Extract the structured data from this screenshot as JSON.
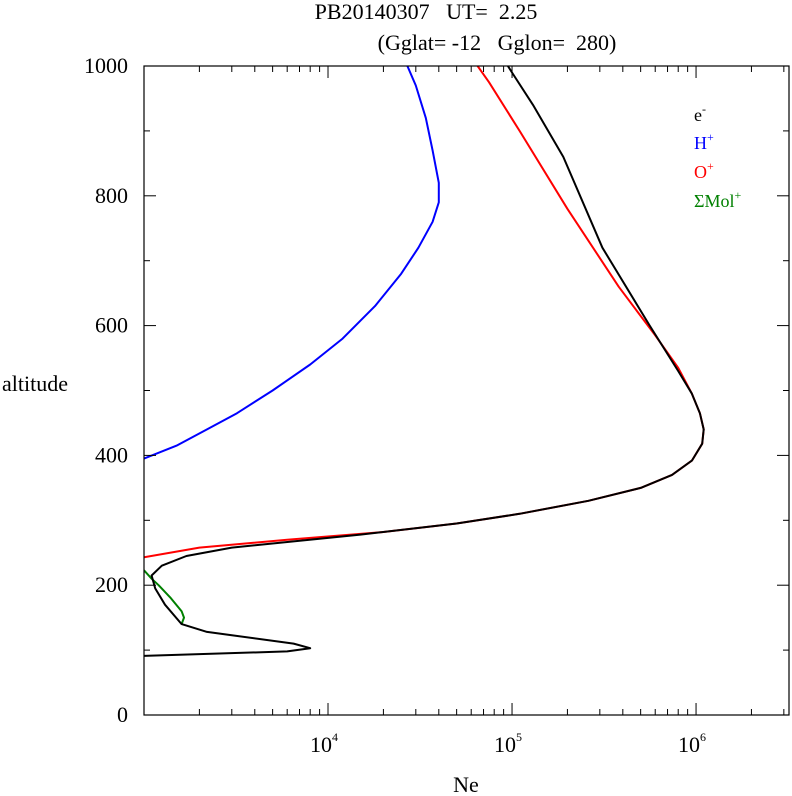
{
  "chart_data": {
    "type": "line",
    "title_line1": "PB20140307   UT=  2.25",
    "title_line2": "(Gglat= -12   Gglon=  280)",
    "xlabel": "Ne",
    "ylabel": "altitude",
    "xscale": "log",
    "xlim": [
      1000,
      3200000
    ],
    "ylim": [
      0,
      1000
    ],
    "x_ticks": [
      {
        "base": "10",
        "exp": "4",
        "value": 10000
      },
      {
        "base": "10",
        "exp": "5",
        "value": 100000
      },
      {
        "base": "10",
        "exp": "6",
        "value": 1000000
      }
    ],
    "y_ticks": [
      "0",
      "200",
      "400",
      "600",
      "800",
      "1000"
    ],
    "legend_position": "top-right",
    "series": [
      {
        "name": "e",
        "name_sup": "-",
        "color": "#000000",
        "points": [
          [
            1000,
            91
          ],
          [
            6000,
            98
          ],
          [
            8000,
            103
          ],
          [
            6500,
            110
          ],
          [
            2200,
            128
          ],
          [
            1600,
            140
          ],
          [
            1300,
            170
          ],
          [
            1150,
            195
          ],
          [
            1100,
            215
          ],
          [
            1250,
            230
          ],
          [
            1700,
            245
          ],
          [
            3000,
            258
          ],
          [
            15000,
            278
          ],
          [
            50000,
            295
          ],
          [
            110000,
            310
          ],
          [
            260000,
            330
          ],
          [
            500000,
            350
          ],
          [
            740000,
            370
          ],
          [
            950000,
            392
          ],
          [
            1080000,
            418
          ],
          [
            1100000,
            440
          ],
          [
            1050000,
            465
          ],
          [
            950000,
            495
          ],
          [
            800000,
            530
          ],
          [
            560000,
            600
          ],
          [
            310000,
            720
          ],
          [
            190000,
            860
          ],
          [
            130000,
            940
          ],
          [
            100000,
            990
          ],
          [
            95000,
            1000
          ]
        ]
      },
      {
        "name": "H",
        "name_sup": "+",
        "color": "#0000ff",
        "points": [
          [
            1000,
            395
          ],
          [
            1500,
            415
          ],
          [
            2200,
            440
          ],
          [
            3200,
            465
          ],
          [
            5000,
            500
          ],
          [
            8000,
            540
          ],
          [
            12000,
            580
          ],
          [
            18000,
            630
          ],
          [
            25000,
            680
          ],
          [
            31000,
            720
          ],
          [
            37000,
            760
          ],
          [
            40000,
            790
          ],
          [
            40000,
            820
          ],
          [
            37000,
            870
          ],
          [
            34000,
            920
          ],
          [
            30000,
            970
          ],
          [
            27000,
            1000
          ]
        ]
      },
      {
        "name": "O",
        "name_sup": "+",
        "color": "#ff0000",
        "points": [
          [
            1000,
            243
          ],
          [
            2000,
            258
          ],
          [
            6000,
            270
          ],
          [
            20000,
            282
          ],
          [
            50000,
            295
          ],
          [
            110000,
            310
          ],
          [
            260000,
            330
          ],
          [
            500000,
            350
          ],
          [
            740000,
            370
          ],
          [
            950000,
            392
          ],
          [
            1080000,
            418
          ],
          [
            1100000,
            440
          ],
          [
            1050000,
            465
          ],
          [
            950000,
            495
          ],
          [
            800000,
            535
          ],
          [
            600000,
            585
          ],
          [
            380000,
            660
          ],
          [
            200000,
            780
          ],
          [
            110000,
            900
          ],
          [
            75000,
            975
          ],
          [
            65000,
            1000
          ]
        ]
      },
      {
        "name": "ΣMol",
        "name_sup": "+",
        "color": "#008000",
        "points": [
          [
            1000,
            223
          ],
          [
            1100,
            210
          ],
          [
            1200,
            200
          ],
          [
            1400,
            180
          ],
          [
            1600,
            160
          ],
          [
            1650,
            150
          ],
          [
            1600,
            140
          ]
        ]
      }
    ]
  }
}
